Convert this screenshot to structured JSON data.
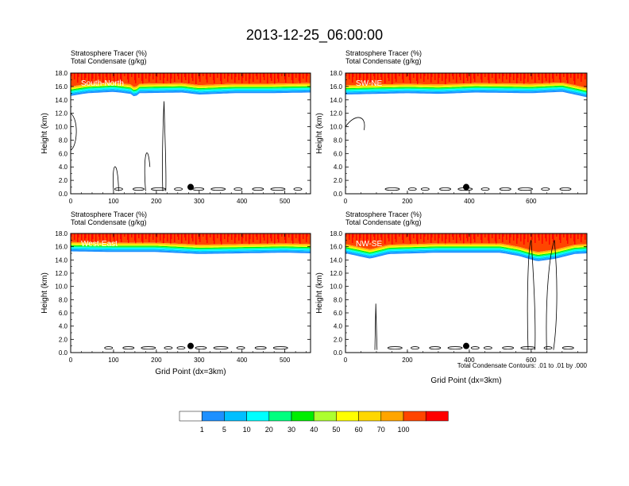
{
  "title": "2013-12-25_06:00:00",
  "panel_header_line1": "Stratosphere Tracer   (%)",
  "panel_header_line2": "Total Condensate   (g/kg)",
  "contour_note": "Total Condensate Contours: .01 to .01 by .000",
  "colors": [
    "#ffffff",
    "#1e90ff",
    "#00bfff",
    "#00ffff",
    "#00ff7f",
    "#00ee00",
    "#adff2f",
    "#ffff00",
    "#ffd700",
    "#ffa500",
    "#ff4500",
    "#ff0000"
  ],
  "colorbar": {
    "labels": [
      "1",
      "5",
      "10",
      "20",
      "30",
      "40",
      "50",
      "60",
      "70",
      "100"
    ]
  },
  "chart_data": [
    {
      "type": "heatmap",
      "name": "South-North",
      "ylabel": "Height (km)",
      "xlabel": "",
      "xlim": [
        0,
        560
      ],
      "ylim": [
        0,
        18
      ],
      "xticks": [
        "0",
        "100",
        "200",
        "300",
        "400",
        "500"
      ],
      "yticks": [
        "0.0",
        "2.0",
        "4.0",
        "6.0",
        "8.0",
        "10.0",
        "12.0",
        "14.0",
        "16.0",
        "18.0"
      ],
      "marker": {
        "x": 280,
        "y": 1.0
      },
      "tracer_top": [
        [
          0,
          14.6
        ],
        [
          40,
          15.0
        ],
        [
          100,
          15.2
        ],
        [
          140,
          14.9
        ],
        [
          150,
          14.4
        ],
        [
          160,
          15.0
        ],
        [
          260,
          15.1
        ],
        [
          300,
          14.8
        ],
        [
          380,
          15.0
        ],
        [
          460,
          15.0
        ],
        [
          560,
          15.1
        ]
      ]
    },
    {
      "type": "heatmap",
      "name": "SW-NE",
      "ylabel": "Height (km)",
      "xlabel": "",
      "xlim": [
        0,
        780
      ],
      "ylim": [
        0,
        18
      ],
      "xticks": [
        "0",
        "200",
        "400",
        "600"
      ],
      "yticks": [
        "0.0",
        "2.0",
        "4.0",
        "6.0",
        "8.0",
        "10.0",
        "12.0",
        "14.0",
        "16.0",
        "18.0"
      ],
      "marker": {
        "x": 390,
        "y": 1.0
      },
      "tracer_top": [
        [
          0,
          14.8
        ],
        [
          200,
          15.0
        ],
        [
          300,
          14.9
        ],
        [
          420,
          15.1
        ],
        [
          600,
          15.0
        ],
        [
          700,
          15.2
        ],
        [
          760,
          14.6
        ],
        [
          780,
          14.4
        ]
      ]
    },
    {
      "type": "heatmap",
      "name": "West-East",
      "ylabel": "Height (km)",
      "xlabel": "Grid Point (dx=3km)",
      "xlim": [
        0,
        560
      ],
      "ylim": [
        0,
        18
      ],
      "xticks": [
        "0",
        "100",
        "200",
        "300",
        "400",
        "500"
      ],
      "yticks": [
        "0.0",
        "2.0",
        "4.0",
        "6.0",
        "8.0",
        "10.0",
        "12.0",
        "14.0",
        "16.0",
        "18.0"
      ],
      "marker": {
        "x": 280,
        "y": 1.0
      },
      "tracer_top": [
        [
          0,
          15.3
        ],
        [
          100,
          15.2
        ],
        [
          200,
          15.2
        ],
        [
          300,
          14.9
        ],
        [
          400,
          15.0
        ],
        [
          500,
          15.1
        ],
        [
          560,
          15.0
        ]
      ]
    },
    {
      "type": "heatmap",
      "name": "NW-SE",
      "ylabel": "Height (km)",
      "xlabel": "Grid Point (dx=3km)",
      "xlim": [
        0,
        780
      ],
      "ylim": [
        0,
        18
      ],
      "xticks": [
        "0",
        "200",
        "400",
        "600"
      ],
      "yticks": [
        "0.0",
        "2.0",
        "4.0",
        "6.0",
        "8.0",
        "10.0",
        "12.0",
        "14.0",
        "16.0",
        "18.0"
      ],
      "marker": {
        "x": 390,
        "y": 1.0
      },
      "tracer_top": [
        [
          0,
          15.0
        ],
        [
          80,
          14.2
        ],
        [
          140,
          14.9
        ],
        [
          300,
          15.1
        ],
        [
          500,
          15.1
        ],
        [
          560,
          14.6
        ],
        [
          620,
          13.8
        ],
        [
          680,
          14.2
        ],
        [
          740,
          14.9
        ],
        [
          780,
          15.0
        ]
      ]
    }
  ]
}
